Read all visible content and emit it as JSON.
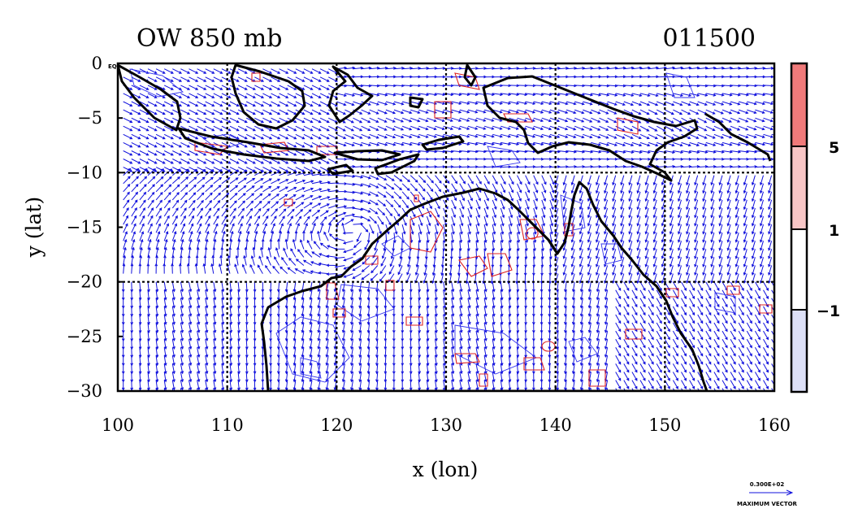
{
  "title_left": "OW 850 mb",
  "title_right": "011500",
  "x_axis": {
    "label": "x (lon)",
    "ticks": [
      100,
      110,
      120,
      130,
      140,
      150,
      160
    ],
    "range": [
      100,
      160
    ]
  },
  "y_axis": {
    "label": "y (lat)",
    "ticks": [
      "0",
      "−5",
      "−10",
      "−15",
      "−20",
      "−25",
      "−30"
    ],
    "values": [
      0,
      -5,
      -10,
      -15,
      -20,
      -25,
      -30
    ],
    "range": [
      -30,
      0
    ]
  },
  "corner_label": "EQ",
  "grid_lines": {
    "lon": [
      110,
      120,
      130,
      140,
      150
    ],
    "lat": [
      -10,
      -20
    ]
  },
  "colorbar": {
    "ticks": [
      "5",
      "1",
      "−1"
    ],
    "bands": [
      {
        "color": "#f07a7a"
      },
      {
        "color": "#f8c6c6"
      },
      {
        "color": "#ffffff"
      },
      {
        "color": "#dde0f7"
      }
    ]
  },
  "vector_key": {
    "value": "0.300E+02",
    "label": "MAXIMUM VECTOR"
  },
  "colors": {
    "vectors": "#1010dd",
    "positive": "#dd2222",
    "negative": "#3333ee",
    "coast": "#000000"
  }
}
